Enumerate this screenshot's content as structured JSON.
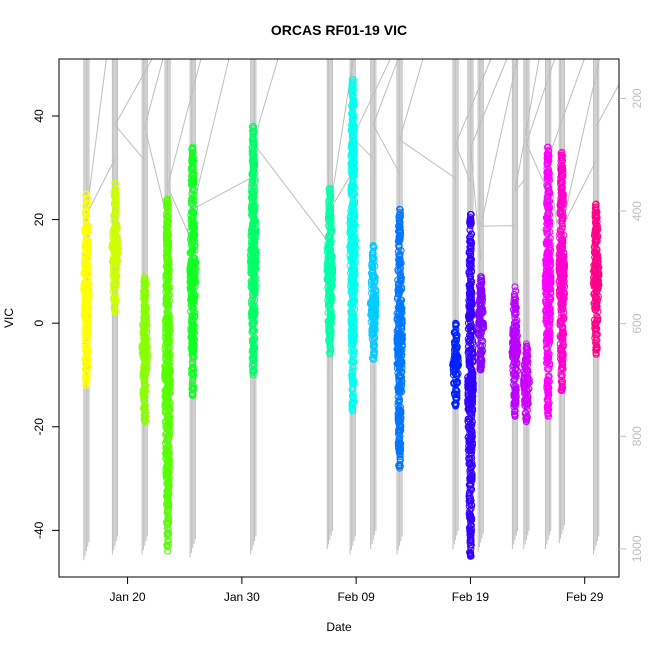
{
  "chart_data": {
    "type": "scatter",
    "title": "ORCAS RF01-19 VIC",
    "xlabel": "Date",
    "ylabel": "VIC",
    "xlim": [
      "2016-01-14",
      "2016-03-03"
    ],
    "ylim": [
      -49,
      51
    ],
    "y2lim": [
      1050,
      130
    ],
    "x_ticks": [
      {
        "label": "Jan 20",
        "date": "2016-01-20"
      },
      {
        "label": "Jan 30",
        "date": "2016-01-30"
      },
      {
        "label": "Feb 09",
        "date": "2016-02-09"
      },
      {
        "label": "Feb 19",
        "date": "2016-02-19"
      },
      {
        "label": "Feb 29",
        "date": "2016-02-29"
      }
    ],
    "y_ticks": [
      -40,
      -20,
      0,
      20,
      40
    ],
    "y2_ticks": [
      200,
      400,
      600,
      800,
      1000
    ],
    "series": [
      {
        "date": "2016-01-16.4",
        "ymin": -12,
        "ymax": 25,
        "color": "#ffff00"
      },
      {
        "date": "2016-01-18.9",
        "ymin": 2,
        "ymax": 27,
        "color": "#ccff00"
      },
      {
        "date": "2016-01-21.5",
        "ymin": -19,
        "ymax": 9,
        "color": "#88ff00"
      },
      {
        "date": "2016-01-23.5",
        "ymin": -44,
        "ymax": 24,
        "color": "#55ff00"
      },
      {
        "date": "2016-01-25.7",
        "ymin": -14,
        "ymax": 34,
        "color": "#11ff22"
      },
      {
        "date": "2016-01-31.0",
        "ymin": -10,
        "ymax": 38,
        "color": "#00ff66"
      },
      {
        "date": "2016-02-06.7",
        "ymin": -6,
        "ymax": 26,
        "color": "#00ffaa"
      },
      {
        "date": "2016-02-08.7",
        "ymin": -17,
        "ymax": 47,
        "color": "#00ffee"
      },
      {
        "date": "2016-02-10.5",
        "ymin": -7,
        "ymax": 15,
        "color": "#00ccff"
      },
      {
        "date": "2016-02-12.8",
        "ymin": -28,
        "ymax": 22,
        "color": "#0077ff"
      },
      {
        "date": "2016-02-17.7",
        "ymin": -16,
        "ymax": 0,
        "color": "#0022ff"
      },
      {
        "date": "2016-02-19.0",
        "ymin": -45,
        "ymax": 21,
        "color": "#3300ff"
      },
      {
        "date": "2016-02-19.9",
        "ymin": -9,
        "ymax": 9,
        "color": "#8800ff"
      },
      {
        "date": "2016-02-22.9",
        "ymin": -18,
        "ymax": 7,
        "color": "#bb00ff"
      },
      {
        "date": "2016-02-23.9",
        "ymin": -19,
        "ymax": -4,
        "color": "#cc00ff"
      },
      {
        "date": "2016-02-25.8",
        "ymin": -18,
        "ymax": 34,
        "color": "#ff00ff"
      },
      {
        "date": "2016-02-27.0",
        "ymin": -13,
        "ymax": 33,
        "color": "#ff00cc"
      },
      {
        "date": "2016-03-01.0",
        "ymin": -6,
        "ymax": 23,
        "color": "#ff0088"
      }
    ],
    "overlay_color": "#bdbdbd"
  }
}
